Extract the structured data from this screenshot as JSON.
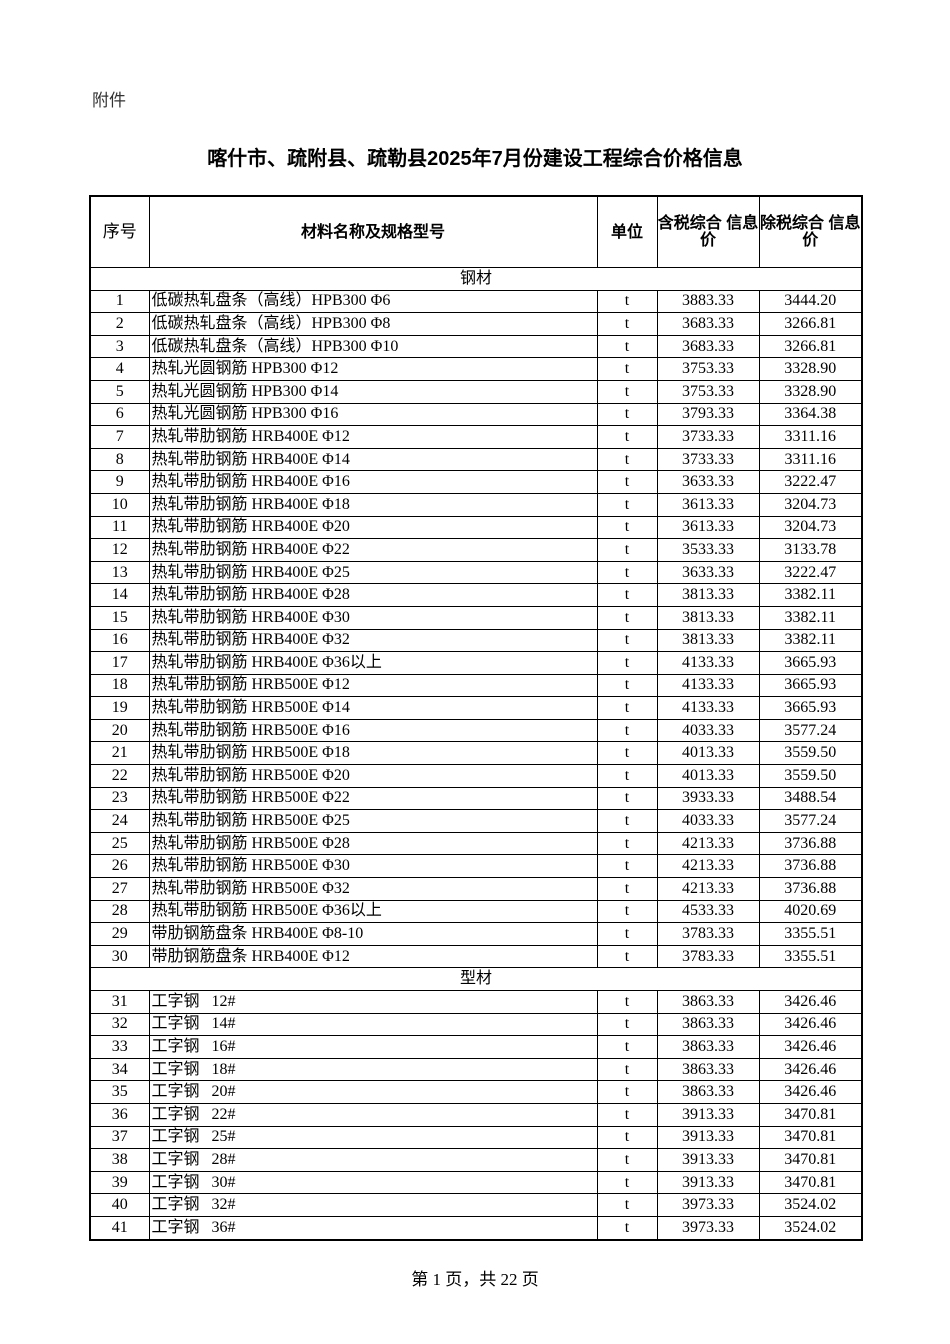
{
  "attachment_label": "附件",
  "title": "喀什市、疏附县、疏勒县2025年7月份建设工程综合价格信息",
  "table": {
    "headers": [
      "序号",
      "材料名称及规格型号",
      "单位",
      "含税综合 信息价",
      "除税综合 信息价"
    ],
    "sections": [
      {
        "name": "钢材",
        "rows": [
          [
            "1",
            "低碳热轧盘条（高线）HPB300 Φ6",
            "t",
            "3883.33",
            "3444.20"
          ],
          [
            "2",
            "低碳热轧盘条（高线）HPB300 Φ8",
            "t",
            "3683.33",
            "3266.81"
          ],
          [
            "3",
            "低碳热轧盘条（高线）HPB300 Φ10",
            "t",
            "3683.33",
            "3266.81"
          ],
          [
            "4",
            "热轧光圆钢筋 HPB300 Φ12",
            "t",
            "3753.33",
            "3328.90"
          ],
          [
            "5",
            "热轧光圆钢筋 HPB300 Φ14",
            "t",
            "3753.33",
            "3328.90"
          ],
          [
            "6",
            "热轧光圆钢筋 HPB300 Φ16",
            "t",
            "3793.33",
            "3364.38"
          ],
          [
            "7",
            "热轧带肋钢筋 HRB400E Φ12",
            "t",
            "3733.33",
            "3311.16"
          ],
          [
            "8",
            "热轧带肋钢筋 HRB400E Φ14",
            "t",
            "3733.33",
            "3311.16"
          ],
          [
            "9",
            "热轧带肋钢筋 HRB400E Φ16",
            "t",
            "3633.33",
            "3222.47"
          ],
          [
            "10",
            "热轧带肋钢筋 HRB400E Φ18",
            "t",
            "3613.33",
            "3204.73"
          ],
          [
            "11",
            "热轧带肋钢筋 HRB400E Φ20",
            "t",
            "3613.33",
            "3204.73"
          ],
          [
            "12",
            "热轧带肋钢筋 HRB400E Φ22",
            "t",
            "3533.33",
            "3133.78"
          ],
          [
            "13",
            "热轧带肋钢筋 HRB400E Φ25",
            "t",
            "3633.33",
            "3222.47"
          ],
          [
            "14",
            "热轧带肋钢筋 HRB400E Φ28",
            "t",
            "3813.33",
            "3382.11"
          ],
          [
            "15",
            "热轧带肋钢筋 HRB400E Φ30",
            "t",
            "3813.33",
            "3382.11"
          ],
          [
            "16",
            "热轧带肋钢筋 HRB400E Φ32",
            "t",
            "3813.33",
            "3382.11"
          ],
          [
            "17",
            "热轧带肋钢筋 HRB400E Φ36以上",
            "t",
            "4133.33",
            "3665.93"
          ],
          [
            "18",
            "热轧带肋钢筋 HRB500E Φ12",
            "t",
            "4133.33",
            "3665.93"
          ],
          [
            "19",
            "热轧带肋钢筋 HRB500E Φ14",
            "t",
            "4133.33",
            "3665.93"
          ],
          [
            "20",
            "热轧带肋钢筋 HRB500E Φ16",
            "t",
            "4033.33",
            "3577.24"
          ],
          [
            "21",
            "热轧带肋钢筋 HRB500E Φ18",
            "t",
            "4013.33",
            "3559.50"
          ],
          [
            "22",
            "热轧带肋钢筋 HRB500E Φ20",
            "t",
            "4013.33",
            "3559.50"
          ],
          [
            "23",
            "热轧带肋钢筋 HRB500E Φ22",
            "t",
            "3933.33",
            "3488.54"
          ],
          [
            "24",
            "热轧带肋钢筋 HRB500E Φ25",
            "t",
            "4033.33",
            "3577.24"
          ],
          [
            "25",
            "热轧带肋钢筋 HRB500E Φ28",
            "t",
            "4213.33",
            "3736.88"
          ],
          [
            "26",
            "热轧带肋钢筋 HRB500E Φ30",
            "t",
            "4213.33",
            "3736.88"
          ],
          [
            "27",
            "热轧带肋钢筋 HRB500E Φ32",
            "t",
            "4213.33",
            "3736.88"
          ],
          [
            "28",
            "热轧带肋钢筋 HRB500E Φ36以上",
            "t",
            "4533.33",
            "4020.69"
          ],
          [
            "29",
            "带肋钢筋盘条 HRB400E Φ8-10",
            "t",
            "3783.33",
            "3355.51"
          ],
          [
            "30",
            "带肋钢筋盘条 HRB400E Φ12",
            "t",
            "3783.33",
            "3355.51"
          ]
        ]
      },
      {
        "name": "型材",
        "rows": [
          [
            "31",
            "工字钢   12#",
            "t",
            "3863.33",
            "3426.46"
          ],
          [
            "32",
            "工字钢   14#",
            "t",
            "3863.33",
            "3426.46"
          ],
          [
            "33",
            "工字钢   16#",
            "t",
            "3863.33",
            "3426.46"
          ],
          [
            "34",
            "工字钢   18#",
            "t",
            "3863.33",
            "3426.46"
          ],
          [
            "35",
            "工字钢   20#",
            "t",
            "3863.33",
            "3426.46"
          ],
          [
            "36",
            "工字钢   22#",
            "t",
            "3913.33",
            "3470.81"
          ],
          [
            "37",
            "工字钢   25#",
            "t",
            "3913.33",
            "3470.81"
          ],
          [
            "38",
            "工字钢   28#",
            "t",
            "3913.33",
            "3470.81"
          ],
          [
            "39",
            "工字钢   30#",
            "t",
            "3913.33",
            "3470.81"
          ],
          [
            "40",
            "工字钢   32#",
            "t",
            "3973.33",
            "3524.02"
          ],
          [
            "41",
            "工字钢   36#",
            "t",
            "3973.33",
            "3524.02"
          ]
        ]
      }
    ]
  },
  "footer": "第 1 页，共 22 页"
}
